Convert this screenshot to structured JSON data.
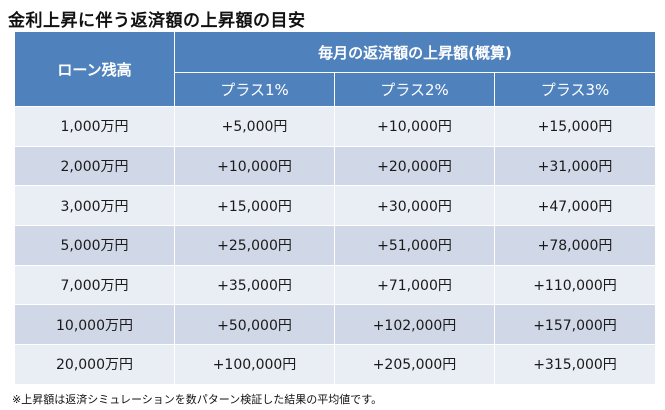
{
  "title": "金利上昇に伴う返済額の上昇額の目安",
  "table": {
    "col_left_header": "ローン残高",
    "group_header": "毎月の返済額の上昇額(概算)",
    "sub_headers": [
      "プラス1%",
      "プラス2%",
      "プラス3%"
    ],
    "rows": [
      {
        "balance": "1,000万円",
        "p1": "+5,000円",
        "p2": "+10,000円",
        "p3": "+15,000円"
      },
      {
        "balance": "2,000万円",
        "p1": "+10,000円",
        "p2": "+20,000円",
        "p3": "+31,000円"
      },
      {
        "balance": "3,000万円",
        "p1": "+15,000円",
        "p2": "+30,000円",
        "p3": "+47,000円"
      },
      {
        "balance": "5,000万円",
        "p1": "+25,000円",
        "p2": "+51,000円",
        "p3": "+78,000円"
      },
      {
        "balance": "7,000万円",
        "p1": "+35,000円",
        "p2": "+71,000円",
        "p3": "+110,000円"
      },
      {
        "balance": "10,000万円",
        "p1": "+50,000円",
        "p2": "+102,000円",
        "p3": "+157,000円"
      },
      {
        "balance": "20,000万円",
        "p1": "+100,000円",
        "p2": "+205,000円",
        "p3": "+315,000円"
      }
    ]
  },
  "colors": {
    "header": "#4f81bd",
    "row_light": "#e9edf4",
    "row_dark": "#d0d8e8"
  },
  "footnote": "※上昇額は返済シミュレーションを数パターン検証した結果の平均値です。"
}
